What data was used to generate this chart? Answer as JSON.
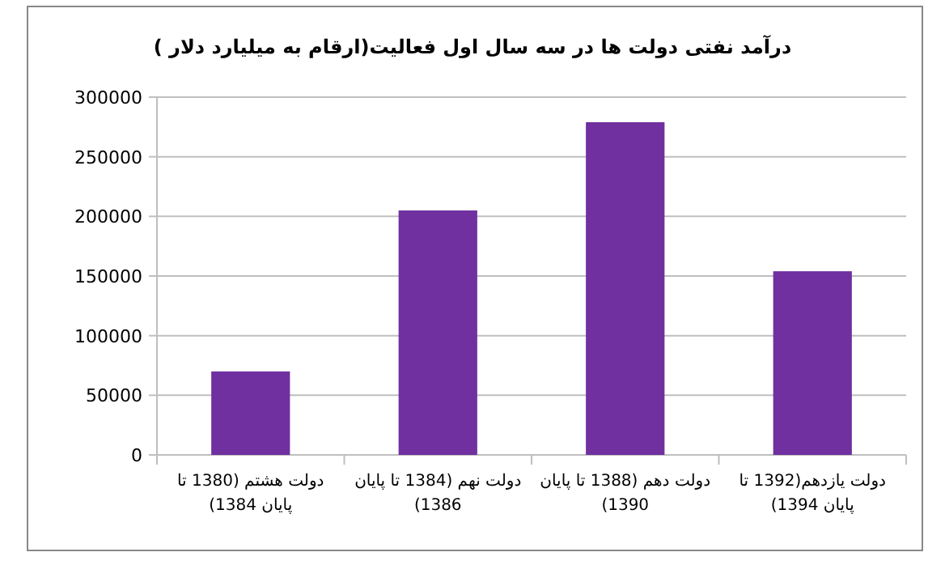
{
  "chart_data": {
    "type": "bar",
    "title": "درآمد نفتی دولت ها در سه سال اول فعالیت(ارقام به میلیارد دلار )",
    "categories": [
      "دولت هشتم (1380 تا پایان 1384)",
      "دولت نهم (1384 تا پایان 1386)",
      "دولت دهم (1388 تا پایان 1390)",
      "دولت یازدهم(1392 تا پایان 1394)"
    ],
    "values": [
      70000,
      205000,
      279000,
      154000
    ],
    "color": "#7030a0",
    "ylim": [
      0,
      300000
    ],
    "yticks": [
      0,
      50000,
      100000,
      150000,
      200000,
      250000,
      300000
    ],
    "grid": "y"
  }
}
